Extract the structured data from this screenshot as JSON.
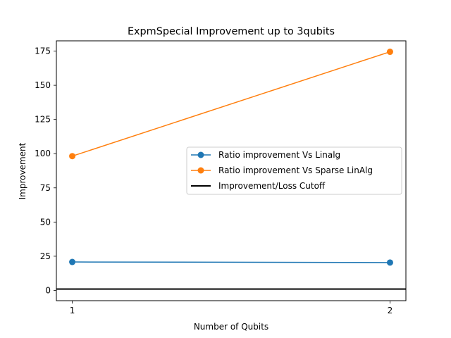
{
  "chart_data": {
    "type": "line",
    "title": "ExpmSpecial Improvement up to 3qubits",
    "xlabel": "Number of Qubits",
    "ylabel": "Improvement",
    "x": [
      1,
      2
    ],
    "xticks": [
      1,
      2
    ],
    "yticks": [
      0,
      25,
      50,
      75,
      100,
      125,
      150,
      175
    ],
    "xlim": [
      0.95,
      2.05
    ],
    "ylim": [
      -7.5,
      182.5
    ],
    "grid": false,
    "legend_position": "center-right",
    "series": [
      {
        "name": "Ratio improvement Vs Linalg",
        "values": [
          20.8,
          20.4
        ],
        "color": "#1f77b4",
        "marker": "circle"
      },
      {
        "name": "Ratio improvement Vs Sparse LinAlg",
        "values": [
          98.2,
          174.5
        ],
        "color": "#ff7f0e",
        "marker": "circle"
      }
    ],
    "reference_lines": [
      {
        "name": "Improvement/Loss Cutoff",
        "y": 1,
        "color": "#000000"
      }
    ]
  }
}
